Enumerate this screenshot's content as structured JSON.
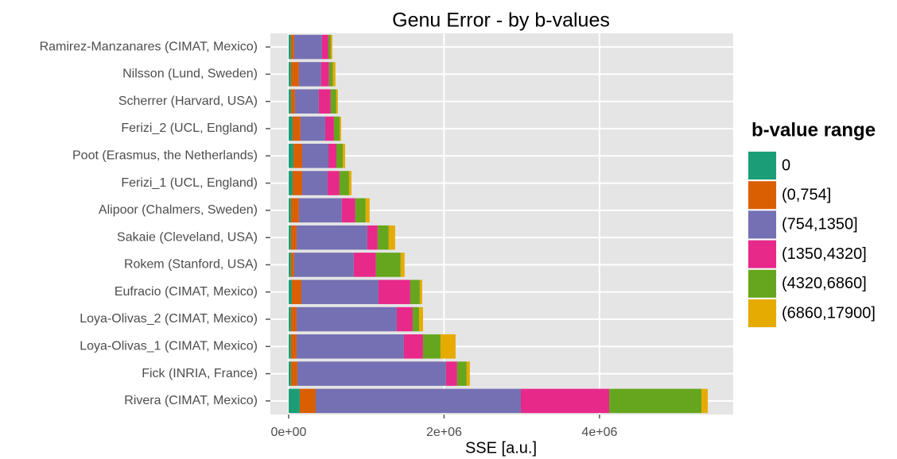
{
  "chart_data": {
    "type": "stacked-bar-horizontal",
    "title": "Genu Error - by b-values",
    "x_label": "SSE [a.u.]",
    "legend_title": "b-value range",
    "legend_position": "right",
    "grid": true,
    "categories": [
      "Ramirez-Manzanares (CIMAT, Mexico)",
      "Nilsson (Lund, Sweden)",
      "Scherrer (Harvard, USA)",
      "Ferizi_2 (UCL, England)",
      "Poot (Erasmus, the Netherlands)",
      "Ferizi_1 (UCL, England)",
      "Alipoor (Chalmers, Sweden)",
      "Sakaie (Cleveland, USA)",
      "Rokem (Stanford, USA)",
      "Eufracio (CIMAT, Mexico)",
      "Loya-Olivas_2 (CIMAT, Mexico)",
      "Loya-Olivas_1 (CIMAT, Mexico)",
      "Fick (INRIA, France)",
      "Rivera (CIMAT, Mexico)"
    ],
    "series": [
      {
        "name": "0",
        "color": "#1b9e77",
        "values": [
          30000,
          30000,
          30000,
          51000,
          61000,
          51000,
          30000,
          30000,
          30000,
          41000,
          30000,
          30000,
          30000,
          143000
        ]
      },
      {
        "name": "(0,754]",
        "color": "#d95f02",
        "values": [
          41000,
          102000,
          51000,
          102000,
          113000,
          123000,
          102000,
          72000,
          41000,
          123000,
          72000,
          72000,
          82000,
          205000
        ]
      },
      {
        "name": "(754,1350]",
        "color": "#7570b3",
        "values": [
          358000,
          286000,
          307000,
          317000,
          338000,
          327000,
          552000,
          910000,
          767000,
          992000,
          1289000,
          1381000,
          1913000,
          2640000
        ]
      },
      {
        "name": "(1350,4320]",
        "color": "#e7298a",
        "values": [
          82000,
          102000,
          153000,
          113000,
          102000,
          153000,
          174000,
          133000,
          286000,
          409000,
          205000,
          246000,
          143000,
          1136000
        ]
      },
      {
        "name": "(4320,6860]",
        "color": "#66a61e",
        "values": [
          31000,
          51000,
          72000,
          72000,
          82000,
          123000,
          133000,
          143000,
          317000,
          123000,
          82000,
          225000,
          123000,
          1187000
        ]
      },
      {
        "name": "(6860,17900]",
        "color": "#e6ab02",
        "values": [
          20000,
          31000,
          20000,
          20000,
          31000,
          31000,
          51000,
          82000,
          51000,
          31000,
          51000,
          194000,
          41000,
          82000
        ]
      }
    ],
    "xlim": [
      -235000,
      5720000
    ],
    "xticks": [
      {
        "value": 0,
        "label": "0e+00"
      },
      {
        "value": 2000000,
        "label": "2e+06"
      },
      {
        "value": 4000000,
        "label": "4e+06"
      }
    ]
  }
}
